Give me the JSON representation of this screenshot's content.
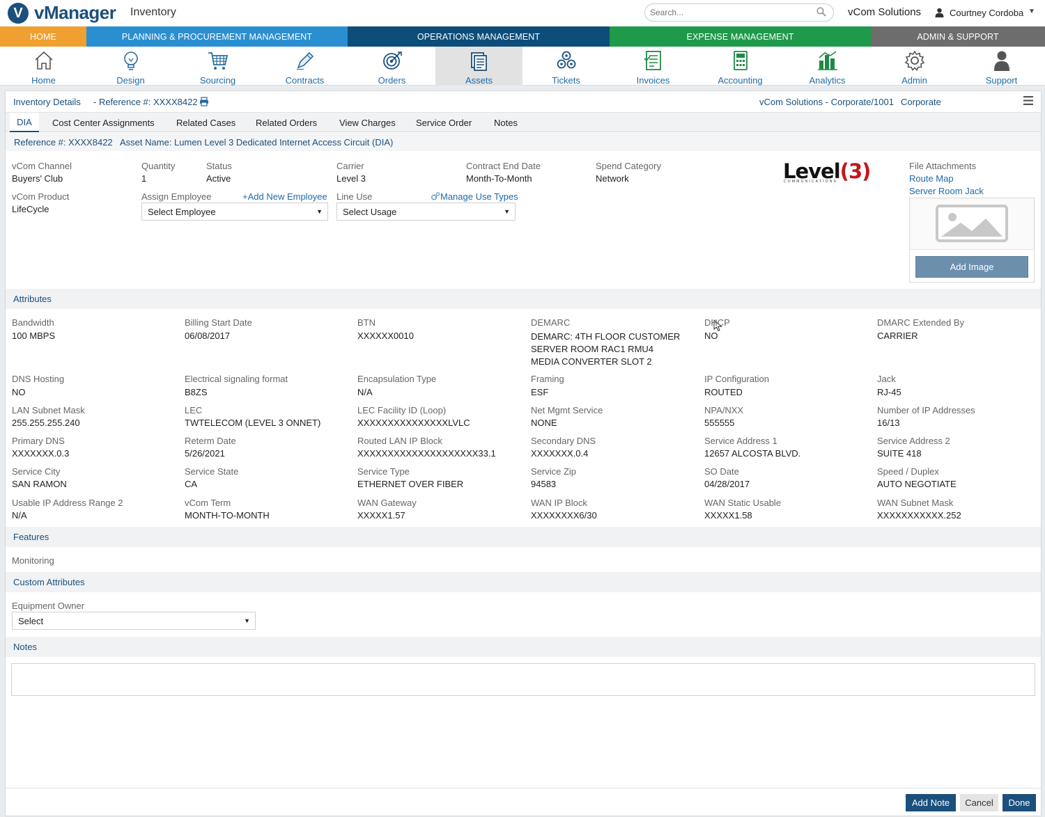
{
  "header": {
    "logo_letter": "V",
    "logo_text": "vManager",
    "module": "Inventory",
    "search_placeholder": "Search...",
    "company": "vCom Solutions",
    "user": "Courtney Cordoba"
  },
  "nav_sections": [
    {
      "label": "HOME",
      "color": "#f0a030"
    },
    {
      "label": "PLANNING & PROCUREMENT MANAGEMENT",
      "color": "#2a8fd0"
    },
    {
      "label": "OPERATIONS MANAGEMENT",
      "color": "#0d4d7a"
    },
    {
      "label": "EXPENSE MANAGEMENT",
      "color": "#1e9a4a"
    },
    {
      "label": "ADMIN & SUPPORT",
      "color": "#6d6d6d"
    }
  ],
  "icon_nav": [
    {
      "label": "Home",
      "icon": "home-icon"
    },
    {
      "label": "Design",
      "icon": "lightbulb-icon"
    },
    {
      "label": "Sourcing",
      "icon": "cart-icon"
    },
    {
      "label": "Contracts",
      "icon": "pen-icon"
    },
    {
      "label": "Orders",
      "icon": "target-icon"
    },
    {
      "label": "Assets",
      "icon": "assets-icon",
      "active": true
    },
    {
      "label": "Tickets",
      "icon": "tickets-icon"
    },
    {
      "label": "Invoices",
      "icon": "invoice-icon"
    },
    {
      "label": "Accounting",
      "icon": "calculator-icon"
    },
    {
      "label": "Analytics",
      "icon": "analytics-icon"
    },
    {
      "label": "Admin",
      "icon": "gear-icon"
    },
    {
      "label": "Support",
      "icon": "person-icon"
    }
  ],
  "panel": {
    "title": "Inventory Details",
    "reference": "- Reference #: XXXX8422",
    "location": "vCom Solutions - Corporate/1001",
    "location_name": "Corporate"
  },
  "tabs": [
    "DIA",
    "Cost Center Assignments",
    "Related Cases",
    "Related Orders",
    "View Charges",
    "Service Order",
    "Notes"
  ],
  "refline": {
    "ref": "Reference #: XXXX8422",
    "asset": "Asset Name: Lumen Level 3 Dedicated Internet Access Circuit (DIA)"
  },
  "details": {
    "vcom_channel_label": "vCom Channel",
    "vcom_channel": "Buyers' Club",
    "quantity_label": "Quantity",
    "quantity": "1",
    "status_label": "Status",
    "status": "Active",
    "carrier_label": "Carrier",
    "carrier": "Level 3",
    "contract_end_label": "Contract End Date",
    "contract_end": "Month-To-Month",
    "spend_category_label": "Spend Category",
    "spend_category": "Network",
    "vcom_product_label": "vCom Product",
    "vcom_product": "LifeCycle",
    "assign_employee_label": "Assign Employee",
    "add_new_employee": "Add New Employee",
    "select_employee": "Select Employee",
    "line_use_label": "Line Use",
    "manage_use_types": "Manage Use Types",
    "select_usage": "Select Usage"
  },
  "carrier_logo": {
    "text": "Level",
    "number": "3",
    "sub": "COMMUNICATIONS"
  },
  "file_attachments": {
    "label": "File Attachments",
    "files": [
      "Route Map",
      "Server Room Jack"
    ],
    "add_image": "Add Image"
  },
  "attributes": {
    "title": "Attributes",
    "rows": [
      [
        {
          "label": "Bandwidth",
          "value": "100 MBPS"
        },
        {
          "label": "Billing Start Date",
          "value": "06/08/2017"
        },
        {
          "label": "BTN",
          "value": "XXXXXX0010"
        },
        {
          "label": "DEMARC",
          "value": "DEMARC: 4TH FLOOR CUSTOMER SERVER ROOM RAC1 RMU4 MEDIA CONVERTER SLOT 2"
        },
        {
          "label": "DHCP",
          "value": "NO"
        },
        {
          "label": "DMARC Extended By",
          "value": "CARRIER"
        }
      ],
      [
        {
          "label": "DNS Hosting",
          "value": "NO"
        },
        {
          "label": "Electrical signaling format",
          "value": "B8ZS"
        },
        {
          "label": "Encapsulation Type",
          "value": "N/A"
        },
        {
          "label": "Framing",
          "value": "ESF"
        },
        {
          "label": "IP Configuration",
          "value": "ROUTED"
        },
        {
          "label": "Jack",
          "value": "RJ-45"
        }
      ],
      [
        {
          "label": "LAN Subnet Mask",
          "value": "255.255.255.240"
        },
        {
          "label": "LEC",
          "value": "TWTELECOM (LEVEL 3 ONNET)"
        },
        {
          "label": "LEC Facility ID (Loop)",
          "value": "XXXXXXXXXXXXXXXLVLC"
        },
        {
          "label": "Net Mgmt Service",
          "value": "NONE"
        },
        {
          "label": "NPA/NXX",
          "value": "555555"
        },
        {
          "label": "Number of IP Addresses",
          "value": "16/13"
        }
      ],
      [
        {
          "label": "Primary DNS",
          "value": "XXXXXXX.0.3"
        },
        {
          "label": "Reterm Date",
          "value": "5/26/2021"
        },
        {
          "label": "Routed LAN IP Block",
          "value": "XXXXXXXXXXXXXXXXXXXX33.1"
        },
        {
          "label": "Secondary DNS",
          "value": "XXXXXXX.0.4"
        },
        {
          "label": "Service Address 1",
          "value": "12657 ALCOSTA BLVD."
        },
        {
          "label": "Service Address 2",
          "value": "SUITE 418"
        }
      ],
      [
        {
          "label": "Service City",
          "value": "SAN RAMON"
        },
        {
          "label": "Service State",
          "value": "CA"
        },
        {
          "label": "Service Type",
          "value": "ETHERNET OVER FIBER"
        },
        {
          "label": "Service Zip",
          "value": "94583"
        },
        {
          "label": "SO Date",
          "value": "04/28/2017"
        },
        {
          "label": "Speed / Duplex",
          "value": "AUTO NEGOTIATE"
        }
      ],
      [
        {
          "label": "Usable IP Address Range 2",
          "value": "N/A"
        },
        {
          "label": "vCom Term",
          "value": "MONTH-TO-MONTH"
        },
        {
          "label": "WAN Gateway",
          "value": "XXXXX1.57"
        },
        {
          "label": "WAN IP Block",
          "value": "XXXXXXXX6/30"
        },
        {
          "label": "WAN Static Usable",
          "value": "XXXXX1.58"
        },
        {
          "label": "WAN Subnet Mask",
          "value": "XXXXXXXXXXX.252"
        }
      ]
    ]
  },
  "features": {
    "title": "Features",
    "items": [
      "Monitoring"
    ]
  },
  "custom_attributes": {
    "title": "Custom Attributes",
    "equipment_owner_label": "Equipment Owner",
    "equipment_owner_value": "Select"
  },
  "notes": {
    "title": "Notes"
  },
  "footer": {
    "add_note": "Add Note",
    "cancel": "Cancel",
    "done": "Done"
  }
}
